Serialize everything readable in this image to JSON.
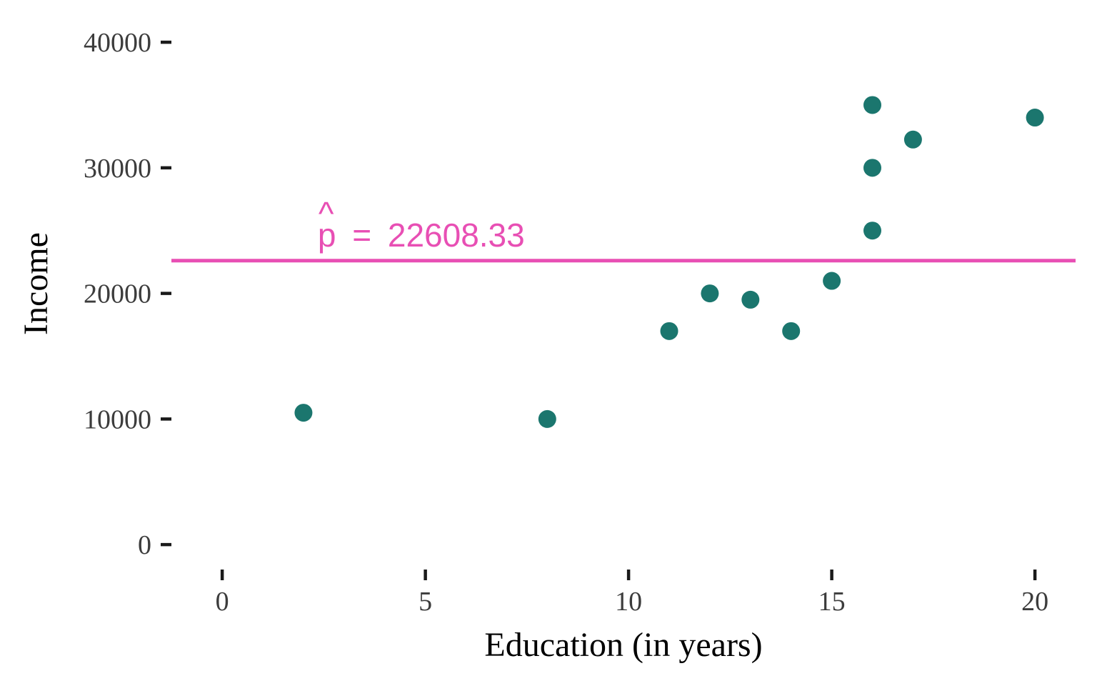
{
  "chart_data": {
    "type": "scatter",
    "xlabel": "Education (in years)",
    "ylabel": "Income",
    "xlim": [
      -1.25,
      21
    ],
    "ylim": [
      -1700,
      41200
    ],
    "x_ticks": [
      0,
      5,
      10,
      15,
      20
    ],
    "y_ticks": [
      0,
      10000,
      20000,
      30000,
      40000
    ],
    "x_tick_labels": [
      "0",
      "5",
      "10",
      "15",
      "20"
    ],
    "y_tick_labels": [
      "0",
      "10000",
      "20000",
      "30000",
      "40000"
    ],
    "grid": false,
    "series": [
      {
        "points": [
          {
            "x": 2,
            "y": 10500
          },
          {
            "x": 8,
            "y": 10000
          },
          {
            "x": 11,
            "y": 17000
          },
          {
            "x": 12,
            "y": 20000
          },
          {
            "x": 13,
            "y": 19500
          },
          {
            "x": 14,
            "y": 17000
          },
          {
            "x": 15,
            "y": 21000
          },
          {
            "x": 16,
            "y": 25000
          },
          {
            "x": 16,
            "y": 30000
          },
          {
            "x": 16,
            "y": 35000
          },
          {
            "x": 17,
            "y": 32250
          },
          {
            "x": 20,
            "y": 34000
          }
        ]
      }
    ],
    "reference_line": {
      "orientation": "horizontal",
      "y": 22608.33,
      "label_symbol": "p",
      "label_hat": "^",
      "label_equals": "=",
      "label_value": "22608.33",
      "label_x": 2.35
    },
    "colors": {
      "points": "#1b766e",
      "reference_line": "#e84fb4",
      "tick_labels": "#3c3c3c",
      "tick_marks": "#1a1a1a",
      "axis_titles": "#000000"
    }
  }
}
